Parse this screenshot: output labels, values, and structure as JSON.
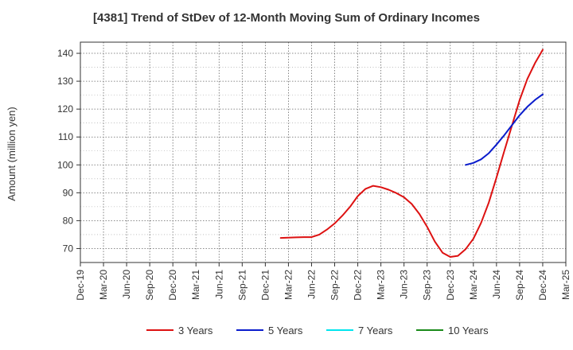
{
  "chart_data": {
    "type": "line",
    "title": "[4381]  Trend of StDev of 12-Month Moving Sum of Ordinary Incomes",
    "ylabel": "Amount (million yen)",
    "xlabel": "",
    "ylim": [
      65,
      144
    ],
    "yticks": [
      70,
      80,
      90,
      100,
      110,
      120,
      130,
      140
    ],
    "categories": [
      "Dec-19",
      "Mar-20",
      "Jun-20",
      "Sep-20",
      "Dec-20",
      "Mar-21",
      "Jun-21",
      "Sep-21",
      "Dec-21",
      "Mar-22",
      "Jun-22",
      "Sep-22",
      "Dec-22",
      "Mar-23",
      "Jun-23",
      "Sep-23",
      "Dec-23",
      "Mar-24",
      "Jun-24",
      "Sep-24",
      "Dec-24",
      "Mar-25"
    ],
    "grid": true,
    "legend_position": "bottom",
    "series": [
      {
        "name": "3 Years",
        "color": "#dd1111",
        "points": [
          [
            "Feb-22",
            73.8
          ],
          [
            "Mar-22",
            73.9
          ],
          [
            "Apr-22",
            74.0
          ],
          [
            "May-22",
            74.1
          ],
          [
            "Jun-22",
            74.1
          ],
          [
            "Jul-22",
            75.0
          ],
          [
            "Aug-22",
            76.8
          ],
          [
            "Sep-22",
            79.0
          ],
          [
            "Oct-22",
            81.8
          ],
          [
            "Nov-22",
            85.0
          ],
          [
            "Dec-22",
            88.8
          ],
          [
            "Jan-23",
            91.4
          ],
          [
            "Feb-23",
            92.5
          ],
          [
            "Mar-23",
            92.0
          ],
          [
            "Apr-23",
            91.1
          ],
          [
            "May-23",
            89.9
          ],
          [
            "Jun-23",
            88.4
          ],
          [
            "Jul-23",
            86.0
          ],
          [
            "Aug-23",
            82.4
          ],
          [
            "Sep-23",
            77.8
          ],
          [
            "Oct-23",
            72.5
          ],
          [
            "Nov-23",
            68.5
          ],
          [
            "Dec-23",
            67.0
          ],
          [
            "Jan-24",
            67.4
          ],
          [
            "Feb-24",
            69.8
          ],
          [
            "Mar-24",
            73.5
          ],
          [
            "Apr-24",
            79.2
          ],
          [
            "May-24",
            86.5
          ],
          [
            "Jun-24",
            95.5
          ],
          [
            "Jul-24",
            104.8
          ],
          [
            "Aug-24",
            114.0
          ],
          [
            "Sep-24",
            123.2
          ],
          [
            "Oct-24",
            130.8
          ],
          [
            "Nov-24",
            136.5
          ],
          [
            "Dec-24",
            141.3
          ]
        ]
      },
      {
        "name": "5 Years",
        "color": "#0a1ccc",
        "points": [
          [
            "Feb-24",
            100.0
          ],
          [
            "Mar-24",
            100.7
          ],
          [
            "Apr-24",
            102.0
          ],
          [
            "May-24",
            104.2
          ],
          [
            "Jun-24",
            107.3
          ],
          [
            "Jul-24",
            110.6
          ],
          [
            "Aug-24",
            114.2
          ],
          [
            "Sep-24",
            117.8
          ],
          [
            "Oct-24",
            120.8
          ],
          [
            "Nov-24",
            123.3
          ],
          [
            "Dec-24",
            125.3
          ]
        ]
      },
      {
        "name": "7 Years",
        "color": "#00e5ee",
        "points": []
      },
      {
        "name": "10 Years",
        "color": "#1a8a1a",
        "points": []
      }
    ]
  }
}
